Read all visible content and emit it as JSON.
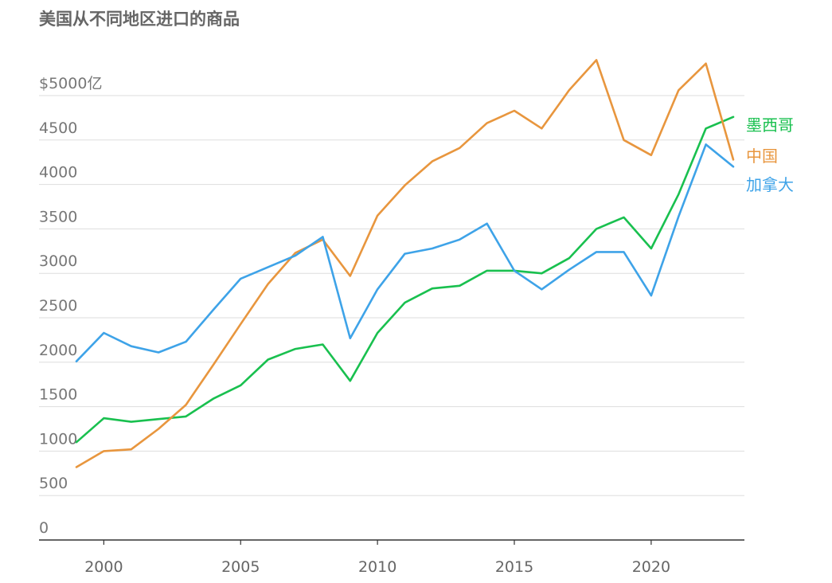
{
  "chart_data": {
    "type": "line",
    "title": "美国从不同地区进口的商品",
    "xlabel": "",
    "ylabel": "",
    "ylim": [
      0,
      5000
    ],
    "y_ticks": [
      "0",
      "500",
      "1000",
      "1500",
      "2000",
      "2500",
      "3000",
      "3500",
      "4000",
      "4500",
      "$5000亿"
    ],
    "x_ticks": [
      "2000",
      "2005",
      "2010",
      "2015",
      "2020"
    ],
    "x": [
      1999,
      2000,
      2001,
      2002,
      2003,
      2004,
      2005,
      2006,
      2007,
      2008,
      2009,
      2010,
      2011,
      2012,
      2013,
      2014,
      2015,
      2016,
      2017,
      2018,
      2019,
      2020,
      2021,
      2022,
      2023
    ],
    "grid": true,
    "legend": "right, labels at line ends",
    "series": [
      {
        "name": "墨西哥",
        "color": "#19c04f",
        "values": [
          1100,
          1370,
          1330,
          1360,
          1390,
          1590,
          1740,
          2030,
          2150,
          2200,
          1790,
          2330,
          2670,
          2830,
          2860,
          3030,
          3030,
          3000,
          3170,
          3500,
          3630,
          3280,
          3890,
          4630,
          4760
        ]
      },
      {
        "name": "中国",
        "color": "#e8963e",
        "values": [
          820,
          1000,
          1020,
          1250,
          1520,
          1970,
          2430,
          2880,
          3230,
          3380,
          2970,
          3650,
          3990,
          4260,
          4410,
          4690,
          4830,
          4630,
          5060,
          5400,
          4500,
          4330,
          5060,
          5360,
          4280
        ]
      },
      {
        "name": "加拿大",
        "color": "#3ea3e8",
        "values": [
          2010,
          2330,
          2180,
          2110,
          2230,
          2590,
          2940,
          3070,
          3200,
          3410,
          2270,
          2820,
          3220,
          3280,
          3380,
          3560,
          3030,
          2820,
          3040,
          3240,
          3240,
          2750,
          3640,
          4450,
          4200
        ]
      }
    ]
  }
}
